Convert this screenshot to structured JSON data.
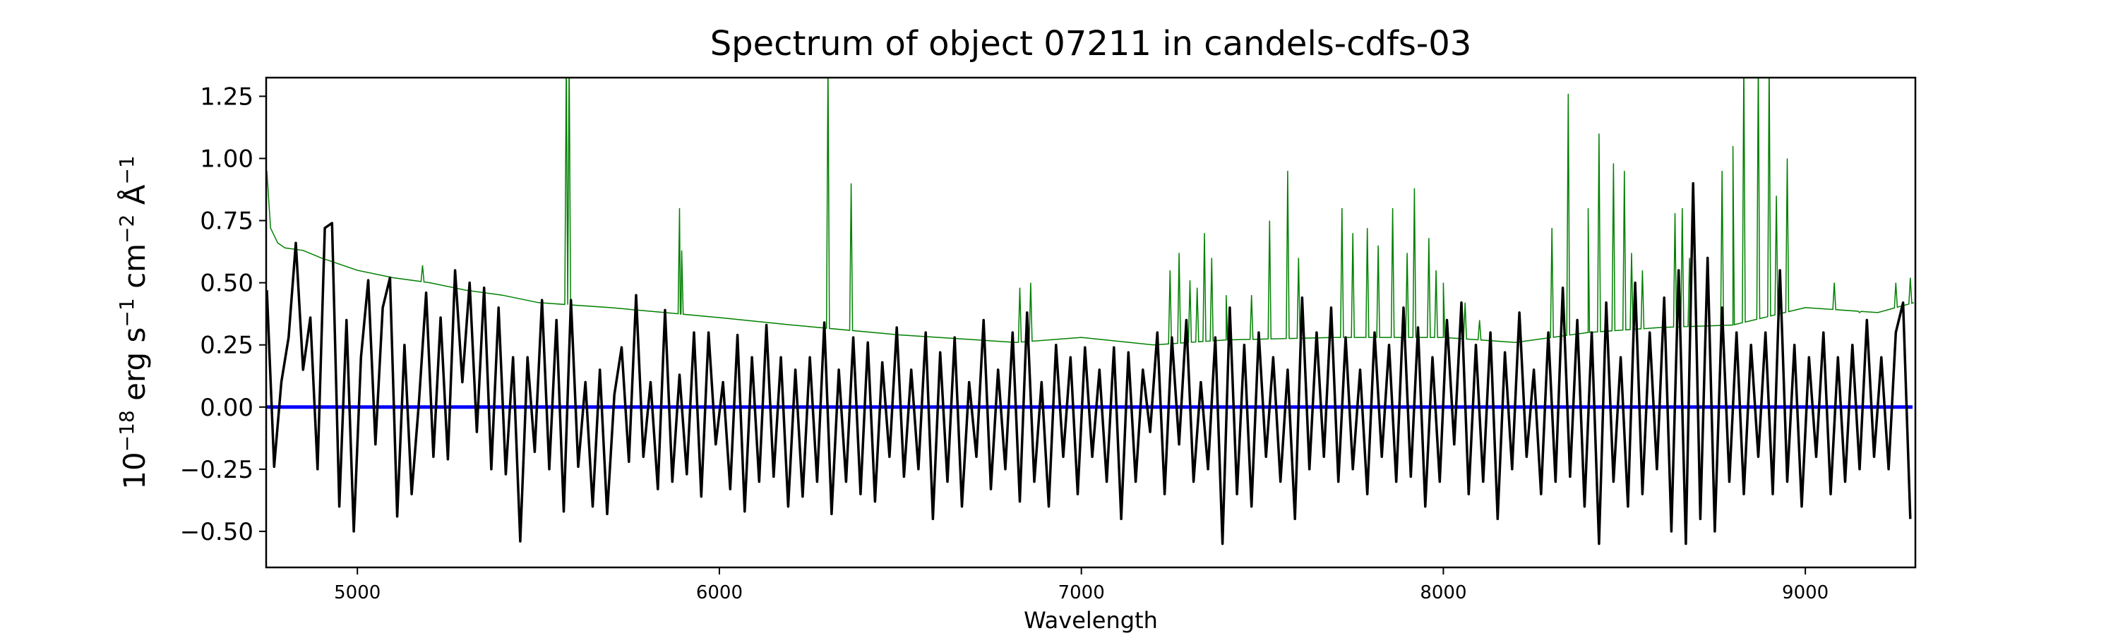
{
  "chart_data": {
    "type": "line",
    "title": "Spectrum of object 07211 in candels-cdfs-03",
    "xlabel": "Wavelength",
    "ylabel_parts": [
      {
        "text": "10",
        "sup": false
      },
      {
        "text": "−18",
        "sup": true
      },
      {
        "text": " erg s",
        "sup": false
      },
      {
        "text": "−1",
        "sup": true
      },
      {
        "text": " cm",
        "sup": false
      },
      {
        "text": "−2",
        "sup": true
      },
      {
        "text": " Å",
        "sup": false
      },
      {
        "text": "−1",
        "sup": true
      }
    ],
    "xlim": [
      4748,
      9304
    ],
    "ylim": [
      -0.645,
      1.325
    ],
    "xticks": [
      5000,
      6000,
      7000,
      8000,
      9000
    ],
    "xtick_labels": [
      "5000",
      "6000",
      "7000",
      "8000",
      "9000"
    ],
    "yticks": [
      -0.5,
      -0.25,
      0,
      0.25,
      0.5,
      0.75,
      1.0,
      1.25
    ],
    "ytick_labels": [
      "−0.50",
      "−0.25",
      "0.00",
      "0.25",
      "0.50",
      "0.75",
      "1.00",
      "1.25"
    ],
    "grid": false,
    "colors": {
      "flux": "#000000",
      "error": "#008000",
      "zero": "#0000ff"
    },
    "zero_line": 0,
    "flux": {
      "x_start": 4750,
      "x_step": 20,
      "values": [
        0.47,
        -0.24,
        0.1,
        0.28,
        0.66,
        0.15,
        0.36,
        -0.25,
        0.72,
        0.74,
        -0.4,
        0.35,
        -0.5,
        0.2,
        0.51,
        -0.15,
        0.4,
        0.52,
        -0.44,
        0.25,
        -0.35,
        0.02,
        0.46,
        -0.2,
        0.36,
        -0.21,
        0.55,
        0.1,
        0.5,
        -0.1,
        0.48,
        -0.25,
        0.4,
        -0.27,
        0.2,
        -0.54,
        0.2,
        -0.18,
        0.43,
        -0.25,
        0.35,
        -0.42,
        0.43,
        -0.24,
        0.1,
        -0.4,
        0.15,
        -0.43,
        0.05,
        0.24,
        -0.22,
        0.45,
        -0.2,
        0.1,
        -0.33,
        0.39,
        -0.3,
        0.13,
        -0.27,
        0.3,
        -0.36,
        0.3,
        -0.15,
        0.1,
        -0.33,
        0.29,
        -0.42,
        0.2,
        -0.3,
        0.33,
        -0.28,
        0.2,
        -0.4,
        0.15,
        -0.36,
        0.2,
        -0.3,
        0.34,
        -0.43,
        0.15,
        -0.3,
        0.28,
        -0.35,
        0.26,
        -0.38,
        0.18,
        -0.2,
        0.32,
        -0.28,
        0.15,
        -0.25,
        0.3,
        -0.45,
        0.22,
        -0.3,
        0.28,
        -0.4,
        0.1,
        -0.2,
        0.35,
        -0.33,
        0.15,
        -0.25,
        0.3,
        -0.38,
        0.38,
        -0.3,
        0.1,
        -0.4,
        0.25,
        -0.2,
        0.2,
        -0.35,
        0.24,
        -0.2,
        0.15,
        -0.3,
        0.24,
        -0.45,
        0.22,
        -0.3,
        0.15,
        -0.1,
        0.3,
        -0.35,
        0.28,
        -0.15,
        0.35,
        -0.3,
        0.1,
        -0.25,
        0.28,
        -0.55,
        0.4,
        -0.35,
        0.25,
        -0.4,
        0.3,
        -0.2,
        0.2,
        -0.3,
        0.15,
        -0.45,
        0.44,
        -0.25,
        0.3,
        -0.2,
        0.4,
        -0.3,
        0.28,
        -0.25,
        0.15,
        -0.35,
        0.3,
        -0.2,
        0.25,
        -0.3,
        0.4,
        -0.28,
        0.32,
        -0.4,
        0.2,
        -0.3,
        0.35,
        -0.15,
        0.42,
        -0.35,
        0.25,
        -0.3,
        0.3,
        -0.45,
        0.22,
        -0.25,
        0.38,
        -0.2,
        0.15,
        -0.35,
        0.3,
        -0.3,
        0.48,
        -0.28,
        0.35,
        -0.4,
        0.3,
        -0.55,
        0.42,
        -0.3,
        0.2,
        -0.4,
        0.5,
        -0.35,
        0.3,
        -0.25,
        0.44,
        -0.5,
        0.55,
        -0.55,
        0.9,
        -0.45,
        0.6,
        -0.5,
        0.4,
        -0.3,
        0.3,
        -0.35,
        0.25,
        -0.2,
        0.3,
        -0.35,
        0.55,
        -0.3,
        0.25,
        -0.4,
        0.2,
        -0.2,
        0.3,
        -0.35,
        0.2,
        -0.3,
        0.25,
        -0.25,
        0.35,
        -0.2,
        0.2,
        -0.25,
        0.3,
        0.42,
        -0.45
      ]
    },
    "error_baseline": [
      [
        4750,
        0.95
      ],
      [
        4760,
        0.72
      ],
      [
        4780,
        0.66
      ],
      [
        4800,
        0.64
      ],
      [
        4850,
        0.63
      ],
      [
        4900,
        0.6
      ],
      [
        5000,
        0.55
      ],
      [
        5100,
        0.52
      ],
      [
        5200,
        0.5
      ],
      [
        5300,
        0.47
      ],
      [
        5400,
        0.45
      ],
      [
        5500,
        0.42
      ],
      [
        5700,
        0.4
      ],
      [
        5850,
        0.38
      ],
      [
        6000,
        0.36
      ],
      [
        6200,
        0.33
      ],
      [
        6500,
        0.29
      ],
      [
        6820,
        0.26
      ],
      [
        7000,
        0.28
      ],
      [
        7200,
        0.25
      ],
      [
        7400,
        0.27
      ],
      [
        7700,
        0.28
      ],
      [
        8000,
        0.28
      ],
      [
        8200,
        0.26
      ],
      [
        8400,
        0.3
      ],
      [
        8600,
        0.32
      ],
      [
        8800,
        0.33
      ],
      [
        9000,
        0.4
      ],
      [
        9200,
        0.38
      ],
      [
        9300,
        0.42
      ]
    ],
    "error_lines": [
      [
        5180,
        0.57
      ],
      [
        5310,
        0.49
      ],
      [
        5577,
        1.4
      ],
      [
        5585,
        1.4
      ],
      [
        5890,
        0.8
      ],
      [
        5896,
        0.63
      ],
      [
        6300,
        1.4
      ],
      [
        6364,
        0.9
      ],
      [
        6830,
        0.48
      ],
      [
        6860,
        0.5
      ],
      [
        7245,
        0.55
      ],
      [
        7270,
        0.62
      ],
      [
        7300,
        0.51
      ],
      [
        7320,
        0.48
      ],
      [
        7340,
        0.7
      ],
      [
        7360,
        0.6
      ],
      [
        7400,
        0.45
      ],
      [
        7470,
        0.45
      ],
      [
        7520,
        0.75
      ],
      [
        7570,
        0.95
      ],
      [
        7600,
        0.6
      ],
      [
        7720,
        0.8
      ],
      [
        7750,
        0.7
      ],
      [
        7790,
        0.72
      ],
      [
        7820,
        0.65
      ],
      [
        7860,
        0.8
      ],
      [
        7900,
        0.62
      ],
      [
        7920,
        0.88
      ],
      [
        7960,
        0.68
      ],
      [
        7980,
        0.55
      ],
      [
        8000,
        0.5
      ],
      [
        8060,
        0.42
      ],
      [
        8100,
        0.35
      ],
      [
        8300,
        0.72
      ],
      [
        8345,
        1.26
      ],
      [
        8400,
        0.8
      ],
      [
        8430,
        1.1
      ],
      [
        8470,
        0.98
      ],
      [
        8500,
        0.95
      ],
      [
        8520,
        0.62
      ],
      [
        8550,
        0.55
      ],
      [
        8640,
        0.78
      ],
      [
        8660,
        0.8
      ],
      [
        8680,
        0.6
      ],
      [
        8770,
        0.95
      ],
      [
        8800,
        1.05
      ],
      [
        8830,
        1.4
      ],
      [
        8870,
        1.4
      ],
      [
        8900,
        1.4
      ],
      [
        8920,
        0.85
      ],
      [
        8950,
        1.0
      ],
      [
        9080,
        0.5
      ],
      [
        9150,
        0.38
      ],
      [
        9250,
        0.5
      ],
      [
        9290,
        0.52
      ]
    ]
  }
}
